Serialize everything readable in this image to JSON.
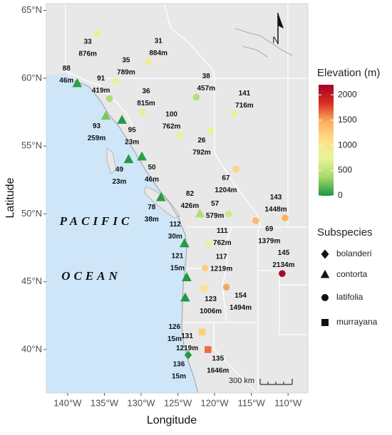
{
  "chart_data": {
    "type": "map",
    "x_label": "Longitude",
    "y_label": "Latitude",
    "xlim": [
      -142.9,
      -107.3
    ],
    "ylim": [
      36.8,
      65.5
    ],
    "xticks": [
      {
        "value": -140,
        "label": "140°W"
      },
      {
        "value": -135,
        "label": "135°W"
      },
      {
        "value": -130,
        "label": "130°W"
      },
      {
        "value": -125,
        "label": "125°W"
      },
      {
        "value": -120,
        "label": "120°W"
      },
      {
        "value": -115,
        "label": "115°W"
      },
      {
        "value": -110,
        "label": "110°W"
      }
    ],
    "yticks": [
      {
        "value": 40,
        "label": "40°N"
      },
      {
        "value": 45,
        "label": "45°N"
      },
      {
        "value": 50,
        "label": "50°N"
      },
      {
        "value": 55,
        "label": "55°N"
      },
      {
        "value": 60,
        "label": "60°N"
      },
      {
        "value": 65,
        "label": "65°N"
      }
    ],
    "color_legend": {
      "title": "Elevation (m)",
      "lim": [
        0,
        2200
      ],
      "ticks": [
        0,
        500,
        1000,
        1500,
        2000
      ],
      "colors": [
        "#1a9641",
        "#a6d96a",
        "#e6f598",
        "#fee08b",
        "#fdae61",
        "#d7301f",
        "#a50026"
      ]
    },
    "shape_legend_title": "Subspecies",
    "series": [
      {
        "name": "bolanderi",
        "marker": "diamond",
        "ids": [
          "136"
        ],
        "x": [
          -123.6
        ],
        "y": [
          39.6
        ],
        "values": [
          15
        ],
        "value_labels": [
          "15m"
        ]
      },
      {
        "name": "contorta",
        "marker": "triangle",
        "ids": [
          "88",
          "93",
          "95",
          "49",
          "50",
          "78",
          "82",
          "112",
          "121",
          "126"
        ],
        "x": [
          -138.7,
          -134.8,
          -132.6,
          -131.7,
          -129.9,
          -127.3,
          -122.0,
          -124.1,
          -123.8,
          -124.0
        ],
        "y": [
          59.6,
          57.2,
          56.9,
          54.0,
          54.2,
          51.2,
          50.0,
          47.8,
          45.3,
          43.8
        ],
        "values": [
          46,
          259,
          23,
          23,
          46,
          38,
          426,
          30,
          15,
          15
        ],
        "value_labels": [
          "46m",
          "259m",
          "23m",
          "23m",
          "46m",
          "38m",
          "426m",
          "30m",
          "15m",
          "15m"
        ]
      },
      {
        "name": "latifolia",
        "marker": "circle",
        "ids": [
          "33",
          "31",
          "35",
          "91",
          "38",
          "36",
          "141",
          "100",
          "26",
          "67",
          "143",
          "57",
          "69",
          "111",
          "117",
          "145",
          "154"
        ],
        "x": [
          -136.0,
          -129.0,
          -133.4,
          -134.3,
          -122.5,
          -129.8,
          -117.3,
          -124.7,
          -120.5,
          -117.1,
          -110.4,
          -118.1,
          -114.4,
          -120.8,
          -121.3,
          -110.8,
          -118.4
        ],
        "y": [
          63.3,
          61.2,
          59.8,
          58.5,
          58.6,
          57.5,
          57.4,
          55.8,
          56.1,
          53.3,
          49.7,
          50.0,
          49.5,
          47.8,
          46.0,
          45.6,
          44.6
        ],
        "values": [
          876,
          884,
          789,
          419,
          457,
          815,
          716,
          762,
          792,
          1204,
          1448,
          579,
          1379,
          762,
          1219,
          2134,
          1494
        ],
        "value_labels": [
          "876m",
          "884m",
          "789m",
          "419m",
          "457m",
          "815m",
          "716m",
          "762m",
          "792m",
          "1204m",
          "1448m",
          "579m",
          "1379m",
          "762m",
          "1219m",
          "2134m",
          "1494m"
        ]
      },
      {
        "name": "murrayana",
        "marker": "square",
        "ids": [
          "123",
          "131",
          "135"
        ],
        "x": [
          -121.4,
          -121.7,
          -120.9
        ],
        "y": [
          44.5,
          41.3,
          40.0
        ],
        "values": [
          1006,
          1219,
          1646
        ],
        "value_labels": [
          "1006m",
          "1219m",
          "1646m"
        ]
      }
    ],
    "annotations": [
      "PACIFIC",
      "OCEAN"
    ],
    "scale_bar": "300 km",
    "north_label": "N"
  }
}
